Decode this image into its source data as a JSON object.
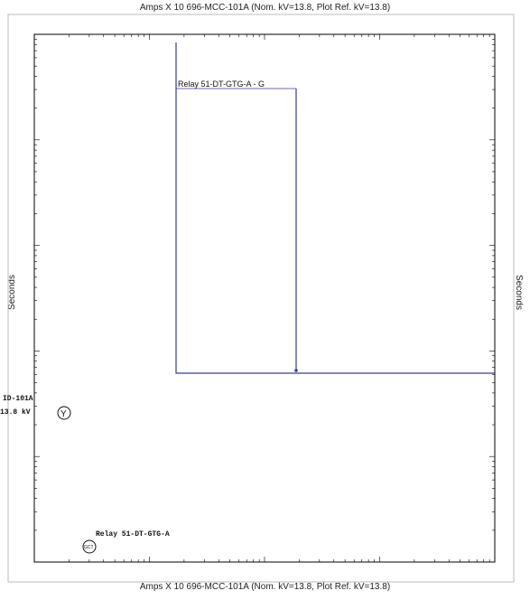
{
  "plot": {
    "top_title": "Amps X 10  696-MCC-101A (Nom. kV=13.8, Plot Ref. kV=13.8)",
    "bottom_title": "Amps X 10  696-MCC-101A (Nom. kV=13.8, Plot Ref. kV=13.8)",
    "y_label_left": "Seconds",
    "y_label_right": "Seconds",
    "curve_label": "Relay 51-DT-GTG-A - G",
    "relay_label": "Relay 51-DT-GTG-A",
    "relay_symbol": "GCT",
    "device_label_1": "ID-101A",
    "device_label_2": "13.8 kV",
    "device_symbol": "Y"
  },
  "colors": {
    "curve": "#3a3a9a",
    "axis": "#000000",
    "background": "#ffffff"
  },
  "chart_data": {
    "type": "line",
    "x_axis": {
      "scale": "log",
      "label": "Amps X 10"
    },
    "y_axis": {
      "scale": "log",
      "label": "Seconds"
    },
    "series": [
      {
        "name": "Relay 51-DT-GTG-A - G",
        "points": [
          [
            10,
            1000
          ],
          [
            10,
            0.5
          ],
          [
            1000,
            0.5
          ]
        ],
        "vertical_marker_x": 130
      }
    ],
    "grid": false
  }
}
